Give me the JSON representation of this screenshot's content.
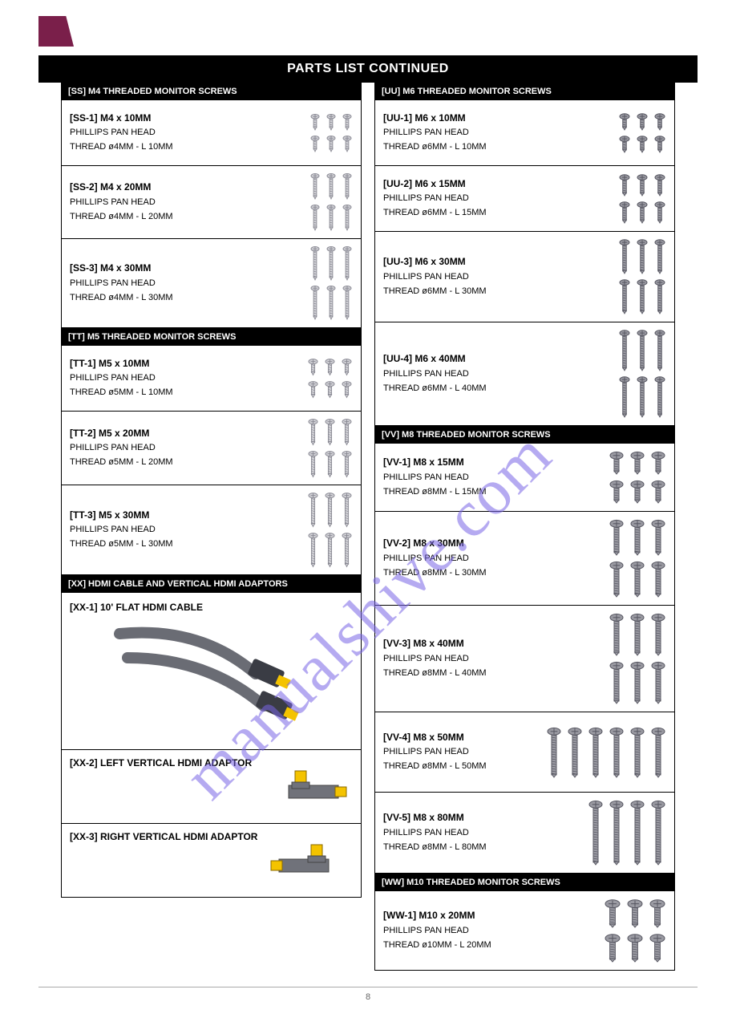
{
  "title": "PARTS LIST CONTINUED",
  "watermark": "manualshive.com",
  "page_number": "8",
  "colors": {
    "header_bg": "#000000",
    "header_fg": "#ffffff",
    "border": "#000000",
    "logo": "#7a1f4a",
    "screw_light_fill": "#d3d3d8",
    "screw_light_stroke": "#8a8a94",
    "screw_dark_fill": "#9a9aa2",
    "screw_dark_stroke": "#555560",
    "hdmi_body": "#6a6c74",
    "hdmi_tip": "#f4c300",
    "adapter_gold": "#f4c300",
    "adapter_body": "#70727a",
    "watermark": "rgba(120,100,230,0.55)"
  },
  "left": {
    "groups": [
      {
        "header": "[SS] M4 THREADED MONITOR SCREWS",
        "rows": [
          {
            "id": "SS-1",
            "label_html": "[SS-1] M4 x 10MM",
            "sub": "PHILLIPS PAN HEAD",
            "spec": "THREAD ø4MM - L 10MM",
            "screw": {
              "style": "light",
              "len": 14,
              "head": 10,
              "rows": [
                3,
                3
              ]
            }
          },
          {
            "id": "SS-2",
            "label_html": "[SS-2] M4 x 20MM",
            "sub": "PHILLIPS PAN HEAD",
            "spec": "THREAD ø4MM - L 20MM",
            "screw": {
              "style": "light",
              "len": 26,
              "head": 10,
              "rows": [
                3,
                3
              ]
            }
          },
          {
            "id": "SS-3",
            "label_html": "[SS-3] M4 x 30MM",
            "sub": "PHILLIPS PAN HEAD",
            "spec": "THREAD ø4MM - L 30MM",
            "screw": {
              "style": "light",
              "len": 36,
              "head": 10,
              "rows": [
                3,
                3
              ]
            }
          }
        ]
      },
      {
        "header": "[TT] M5 THREADED MONITOR SCREWS",
        "rows": [
          {
            "id": "TT-1",
            "label_html": "[TT-1] M5 x 10MM",
            "sub": "PHILLIPS PAN HEAD",
            "spec": "THREAD ø5MM - L 10MM",
            "screw": {
              "style": "light",
              "len": 14,
              "head": 11,
              "rows": [
                3,
                3
              ]
            }
          },
          {
            "id": "TT-2",
            "label_html": "[TT-2] M5 x 20MM",
            "sub": "PHILLIPS PAN HEAD",
            "spec": "THREAD ø5MM - L 20MM",
            "screw": {
              "style": "light",
              "len": 26,
              "head": 11,
              "rows": [
                3,
                3
              ]
            }
          },
          {
            "id": "TT-3",
            "label_html": "[TT-3] M5 x 30MM",
            "sub": "PHILLIPS PAN HEAD",
            "spec": "THREAD ø5MM - L 30MM",
            "screw": {
              "style": "light",
              "len": 36,
              "head": 11,
              "rows": [
                3,
                3
              ]
            }
          }
        ]
      },
      {
        "header": "[XX] HDMI CABLE AND VERTICAL HDMI ADAPTORS",
        "rows": [
          {
            "id": "XX-1",
            "type": "hdmi",
            "label_html": "[XX-1] 10' FLAT HDMI CABLE"
          },
          {
            "id": "XX-2",
            "type": "adapter-l",
            "label_html": "[XX-2] LEFT VERTICAL HDMI ADAPTOR"
          },
          {
            "id": "XX-3",
            "type": "adapter-r",
            "label_html": "[XX-3] RIGHT VERTICAL HDMI ADAPTOR"
          }
        ]
      }
    ]
  },
  "right": {
    "groups": [
      {
        "header": "[UU] M6 THREADED MONITOR SCREWS",
        "rows": [
          {
            "id": "UU-1",
            "label_html": "[UU-1] M6 x 10MM",
            "sub": "PHILLIPS PAN HEAD",
            "spec": "THREAD ø6MM - L 10MM",
            "screw": {
              "style": "dark",
              "len": 14,
              "head": 12,
              "rows": [
                3,
                3
              ]
            }
          },
          {
            "id": "UU-2",
            "label_html": "[UU-2] M6 x 15MM",
            "sub": "PHILLIPS PAN HEAD",
            "spec": "THREAD ø6MM - L 15MM",
            "screw": {
              "style": "dark",
              "len": 20,
              "head": 12,
              "rows": [
                3,
                3
              ]
            }
          },
          {
            "id": "UU-3",
            "label_html": "[UU-3] M6 x 30MM",
            "sub": "PHILLIPS PAN HEAD",
            "spec": "THREAD ø6MM - L 30MM",
            "screw": {
              "style": "dark",
              "len": 36,
              "head": 12,
              "rows": [
                3,
                3
              ]
            }
          },
          {
            "id": "UU-4",
            "label_html": "[UU-4] M6 x 40MM",
            "sub": "PHILLIPS PAN HEAD",
            "spec": "THREAD ø6MM - L 40MM",
            "screw": {
              "style": "dark",
              "len": 44,
              "head": 12,
              "rows": [
                3,
                3
              ]
            }
          }
        ]
      },
      {
        "header": "[VV] M8 THREADED MONITOR SCREWS",
        "rows": [
          {
            "id": "VV-1",
            "label_html": "[VV-1] M8 x 15MM",
            "sub": "PHILLIPS PAN HEAD",
            "spec": "THREAD ø8MM - L 15MM",
            "screw": {
              "style": "dark",
              "len": 20,
              "head": 16,
              "rows": [
                3,
                3
              ]
            }
          },
          {
            "id": "VV-2",
            "label_html": "[VV-2] M8 x 30MM",
            "sub": "PHILLIPS PAN HEAD",
            "spec": "THREAD ø8MM - L 30MM",
            "screw": {
              "style": "dark",
              "len": 36,
              "head": 16,
              "rows": [
                3,
                3
              ]
            }
          },
          {
            "id": "VV-3",
            "label_html": "[VV-3] M8 x 40MM",
            "sub": "PHILLIPS PAN HEAD",
            "spec": "THREAD ø8MM - L 40MM",
            "screw": {
              "style": "dark",
              "len": 44,
              "head": 16,
              "rows": [
                3,
                3
              ]
            }
          },
          {
            "id": "VV-4",
            "label_html": "[VV-4] M8 x 50MM",
            "sub": "PHILLIPS PAN HEAD",
            "spec": "THREAD ø8MM - L 50MM",
            "screw": {
              "style": "dark",
              "len": 54,
              "head": 16,
              "rows": [
                6
              ]
            }
          },
          {
            "id": "VV-5",
            "label_html": "[VV-5] M8 x 80MM",
            "sub": "PHILLIPS PAN HEAD",
            "spec": "THREAD ø8MM - L 80MM",
            "screw": {
              "style": "dark",
              "len": 72,
              "head": 16,
              "rows": [
                4
              ]
            }
          }
        ]
      },
      {
        "header": "[WW] M10 THREADED MONITOR SCREWS",
        "rows": [
          {
            "id": "WW-1",
            "label_html": "[WW-1] M10 x 20MM",
            "sub": "PHILLIPS PAN HEAD",
            "spec": "THREAD ø10MM - L 20MM",
            "screw": {
              "style": "dark",
              "len": 26,
              "head": 18,
              "rows": [
                3,
                3
              ]
            }
          }
        ]
      }
    ]
  }
}
